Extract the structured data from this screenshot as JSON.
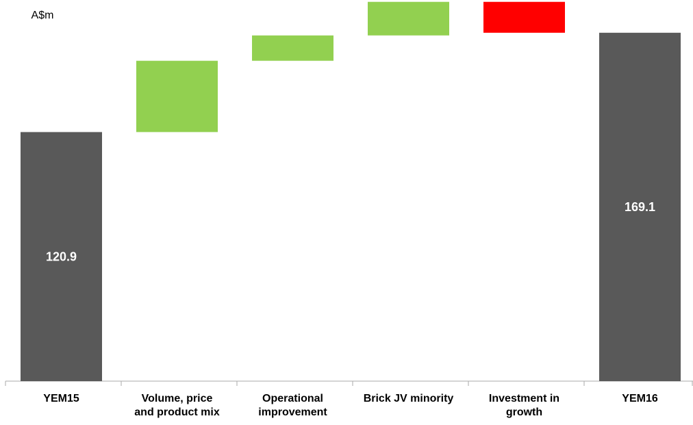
{
  "chart_data": {
    "type": "waterfall",
    "y_label": "A$m",
    "categories": [
      "YEM15",
      "Volume, price\nand product mix",
      "Operational\nimprovement",
      "Brick JV minority",
      "Investment in\ngrowth",
      "YEM16"
    ],
    "values": [
      120.9,
      34.6,
      12.3,
      16.3,
      -15.0,
      169.1
    ],
    "colors": [
      "#595959",
      "#92d050",
      "#92d050",
      "#92d050",
      "#ff0000",
      "#595959"
    ],
    "ylim": [
      0,
      185
    ]
  }
}
